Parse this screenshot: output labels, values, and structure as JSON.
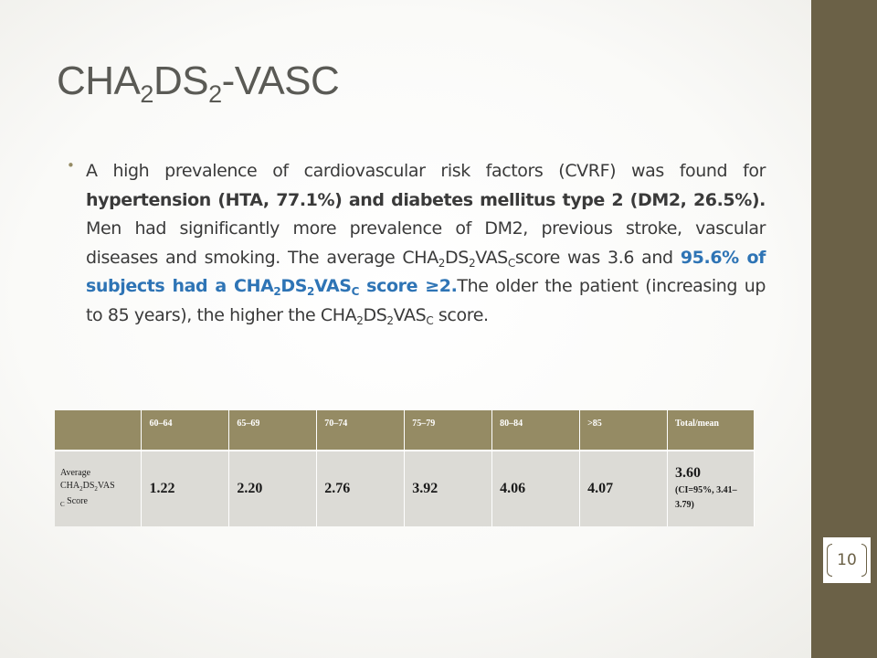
{
  "slide": {
    "title": {
      "main": "CHA",
      "sub1": "2",
      "mid": "DS",
      "sub2": "2",
      "tail": "-VASC"
    },
    "page_number": "10",
    "bullet": {
      "p1": "A high prevalence of cardiovascular risk factors (CVRF) was found for ",
      "p2_bold": "hypertension (HTA, 77.1%) and diabetes mellitus type 2 (DM2, 26.5%).",
      "p3": " Men had significantly more prevalence of DM2, previous stroke, vascular diseases and smoking. The average CHA",
      "p3_sub1": "2",
      "p3b": "DS",
      "p3_sub2": "2",
      "p3c": "VAS",
      "p3_sub3": "C",
      "p3d": "score was 3.6 and ",
      "p4_hl": "95.6% of subjects had a CHA",
      "p4_sub1": "2",
      "p4b": "DS",
      "p4_sub2": "2",
      "p4c": "VAS",
      "p4_sub3": "C",
      "p4d": " score ≥2.",
      "p5": "The older the patient (increasing up to 85 years), the higher the CHA",
      "p5_sub1": "2",
      "p5b": "DS",
      "p5_sub2": "2",
      "p5c": "VAS",
      "p5_sub3": "C",
      "p5d": " score."
    }
  },
  "table": {
    "headers": [
      "",
      "60–64",
      "65–69",
      "70–74",
      "75–79",
      "80–84",
      ">85",
      "Total/mean"
    ],
    "row_label": {
      "a": "Average CHA",
      "s1": "2",
      "b": "DS",
      "s2": "2",
      "c": "VAS",
      "s3": "C",
      "d": " Score"
    },
    "values": [
      "1.22",
      "2.20",
      "2.76",
      "3.92",
      "4.06",
      "4.07"
    ],
    "total": "3.60",
    "total_ci": "(CI=95%, 3.41–3.79)"
  },
  "colors": {
    "accent": "#958b64",
    "sidebar": "#6b6147",
    "highlight": "#2e74b5",
    "cell": "#dcdbd6"
  }
}
